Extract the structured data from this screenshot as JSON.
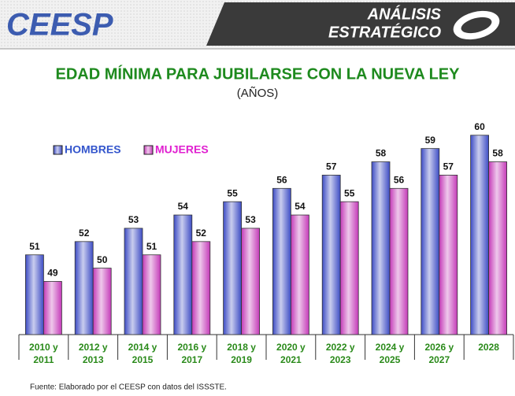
{
  "header": {
    "logo": "CEESP",
    "banner": [
      "ANÁLISIS",
      "ESTRATÉGICO"
    ]
  },
  "chart_data": {
    "type": "bar",
    "title": "EDAD MÍNIMA PARA JUBILARSE CON LA NUEVA LEY",
    "subtitle": "(AÑOS)",
    "categories": [
      "2010 y\n2011",
      "2012 y\n2013",
      "2014 y\n2015",
      "2016 y\n2017",
      "2018 y\n2019",
      "2020 y\n2021",
      "2022 y\n2023",
      "2024 y\n2025",
      "2026 y\n2027",
      "2028"
    ],
    "series": [
      {
        "name": "HOMBRES",
        "color": "#3d4cc4",
        "values": [
          51,
          52,
          53,
          54,
          55,
          56,
          57,
          58,
          59,
          60
        ]
      },
      {
        "name": "MUJERES",
        "color": "#c43ab8",
        "values": [
          49,
          50,
          51,
          52,
          53,
          54,
          55,
          56,
          57,
          58
        ]
      }
    ],
    "legend_colors": [
      "#3355cc",
      "#e020d0"
    ],
    "ylim": [
      45,
      62
    ],
    "legend": "top-left"
  },
  "footer": {
    "source": "Fuente: Elaborado por el CEESP con datos del ISSSTE."
  }
}
